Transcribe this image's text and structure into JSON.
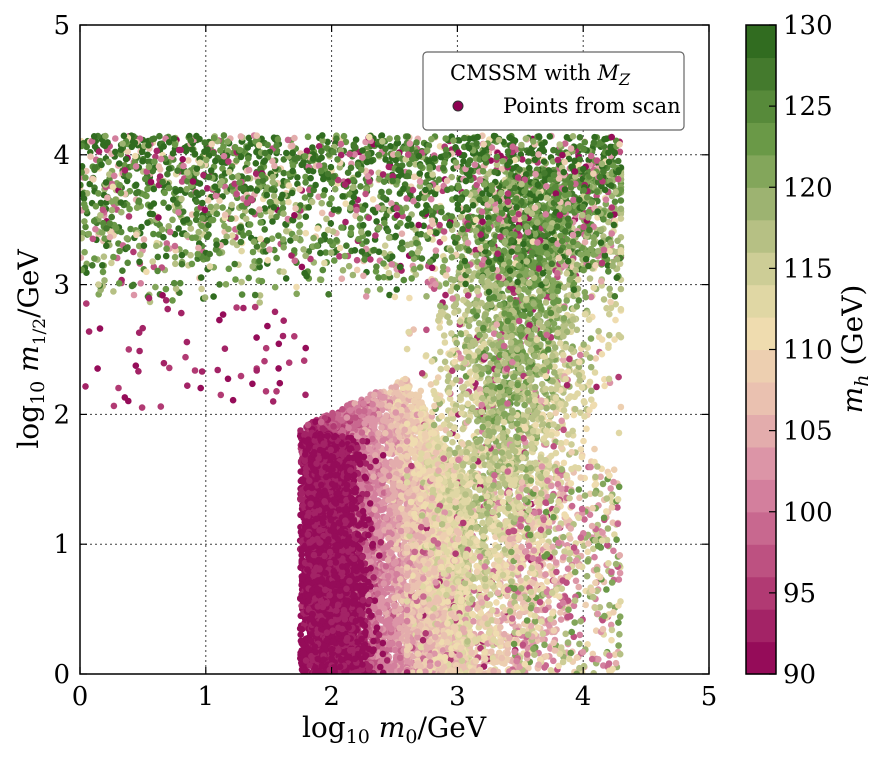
{
  "chart_data": {
    "type": "scatter",
    "xlabel": "log10 m0/GeV",
    "ylabel": "log10 m1/2/GeV",
    "xlim": [
      0,
      5
    ],
    "ylim": [
      0,
      5
    ],
    "x_ticks": [
      "0",
      "1",
      "2",
      "3",
      "4",
      "5"
    ],
    "y_ticks": [
      "0",
      "1",
      "2",
      "3",
      "4",
      "5"
    ],
    "grid": true,
    "legend": {
      "title": "CMSSM with M_Z",
      "entry": "Points from scan",
      "placement": "top-right"
    },
    "colorbar": {
      "label": "m_h (GeV)",
      "range": [
        90,
        130
      ],
      "ticks": [
        "90",
        "95",
        "100",
        "105",
        "110",
        "115",
        "120",
        "125",
        "130"
      ],
      "levels": 20,
      "low_color": "#8e0152",
      "mid_color": "#f7f1d0",
      "high_color": "#276419"
    },
    "regions": [
      {
        "name": "high-m12 band",
        "x_range": [
          0,
          4.3
        ],
        "y_range": [
          2.9,
          4.15
        ],
        "mh_trend": "mixed, mostly 115-130"
      },
      {
        "name": "low-m0 dense cluster",
        "x_range": [
          1.75,
          2.2
        ],
        "y_range": [
          0,
          1.85
        ],
        "mh_trend": "90-93"
      },
      {
        "name": "gradient fan",
        "x_range": [
          2.0,
          3.0
        ],
        "y_range": [
          0,
          2.3
        ],
        "mh_trend": "93-112 increasing with m0"
      },
      {
        "name": "high-m0 plume",
        "x_range": [
          2.9,
          4.3
        ],
        "y_range": [
          0,
          3.9
        ],
        "mh_trend": "110-125"
      }
    ]
  }
}
